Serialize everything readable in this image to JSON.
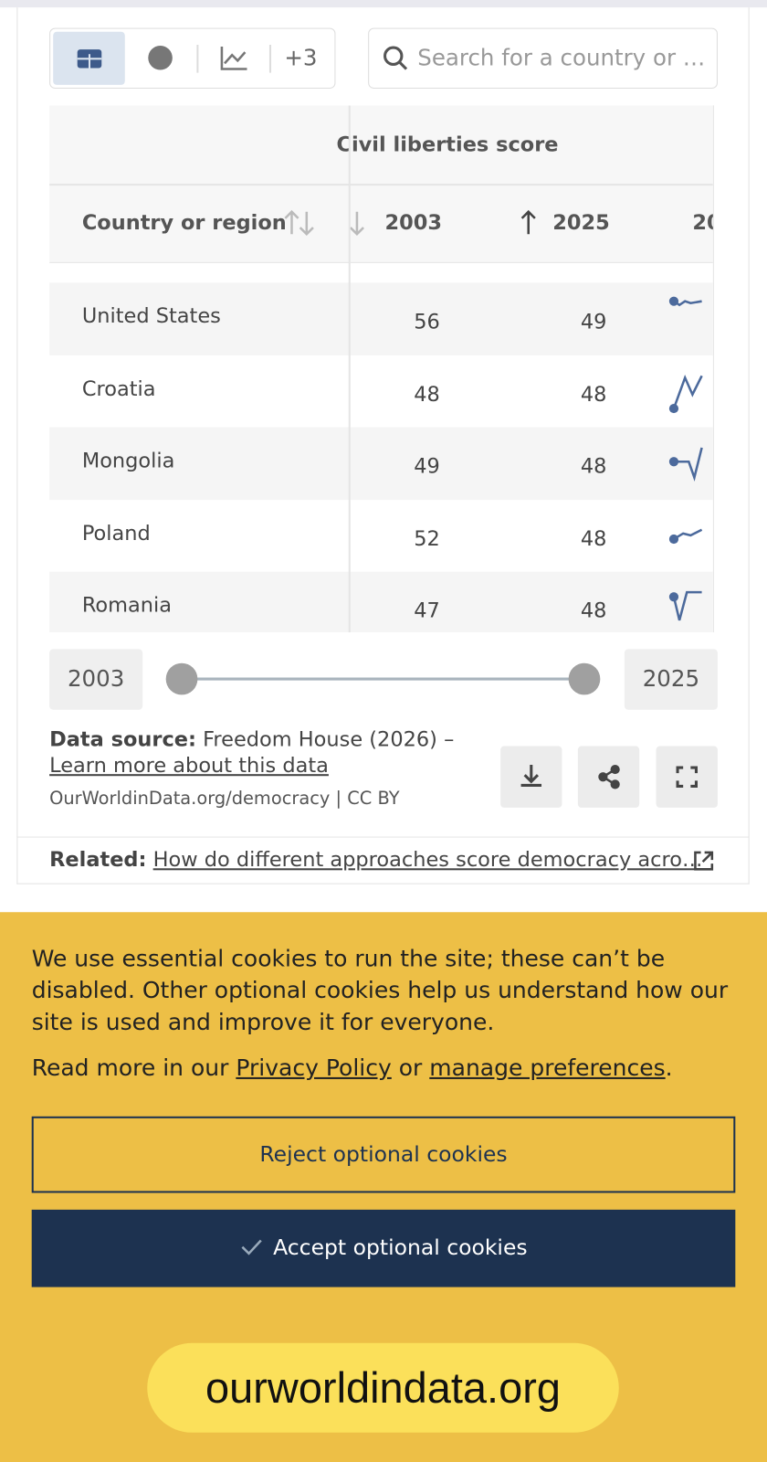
{
  "toolbar": {
    "more_tabs": "+3",
    "search_placeholder": "Search for a country or …"
  },
  "table": {
    "group_header": "Civil liberties score",
    "columns": [
      "Country or region",
      "2003",
      "2025",
      "20"
    ],
    "rows": [
      [
        "United States",
        56,
        49
      ],
      [
        "Croatia",
        48,
        48
      ],
      [
        "Mongolia",
        49,
        48
      ],
      [
        "Poland",
        52,
        48
      ],
      [
        "Romania",
        47,
        48
      ]
    ]
  },
  "slider": {
    "start": "2003",
    "end": "2025"
  },
  "source": {
    "label": "Data source:",
    "text": "Freedom House (2026) –",
    "link": "Learn more about this data",
    "url": "OurWorldinData.org/democracy | CC BY"
  },
  "related": {
    "label": "Related:",
    "link": "How do different approaches score democracy acro…"
  },
  "cookies": {
    "message": "We use essential cookies to run the site; these can’t be disabled. Other optional cookies help us understand how our site is used and improve it for everyone.",
    "read_more": [
      "Read more in our",
      "Privacy Policy",
      "or",
      "manage preferences",
      "."
    ],
    "reject": "Reject optional cookies",
    "accept": "Accept optional cookies"
  },
  "address_bar": "ourworldindata.org"
}
